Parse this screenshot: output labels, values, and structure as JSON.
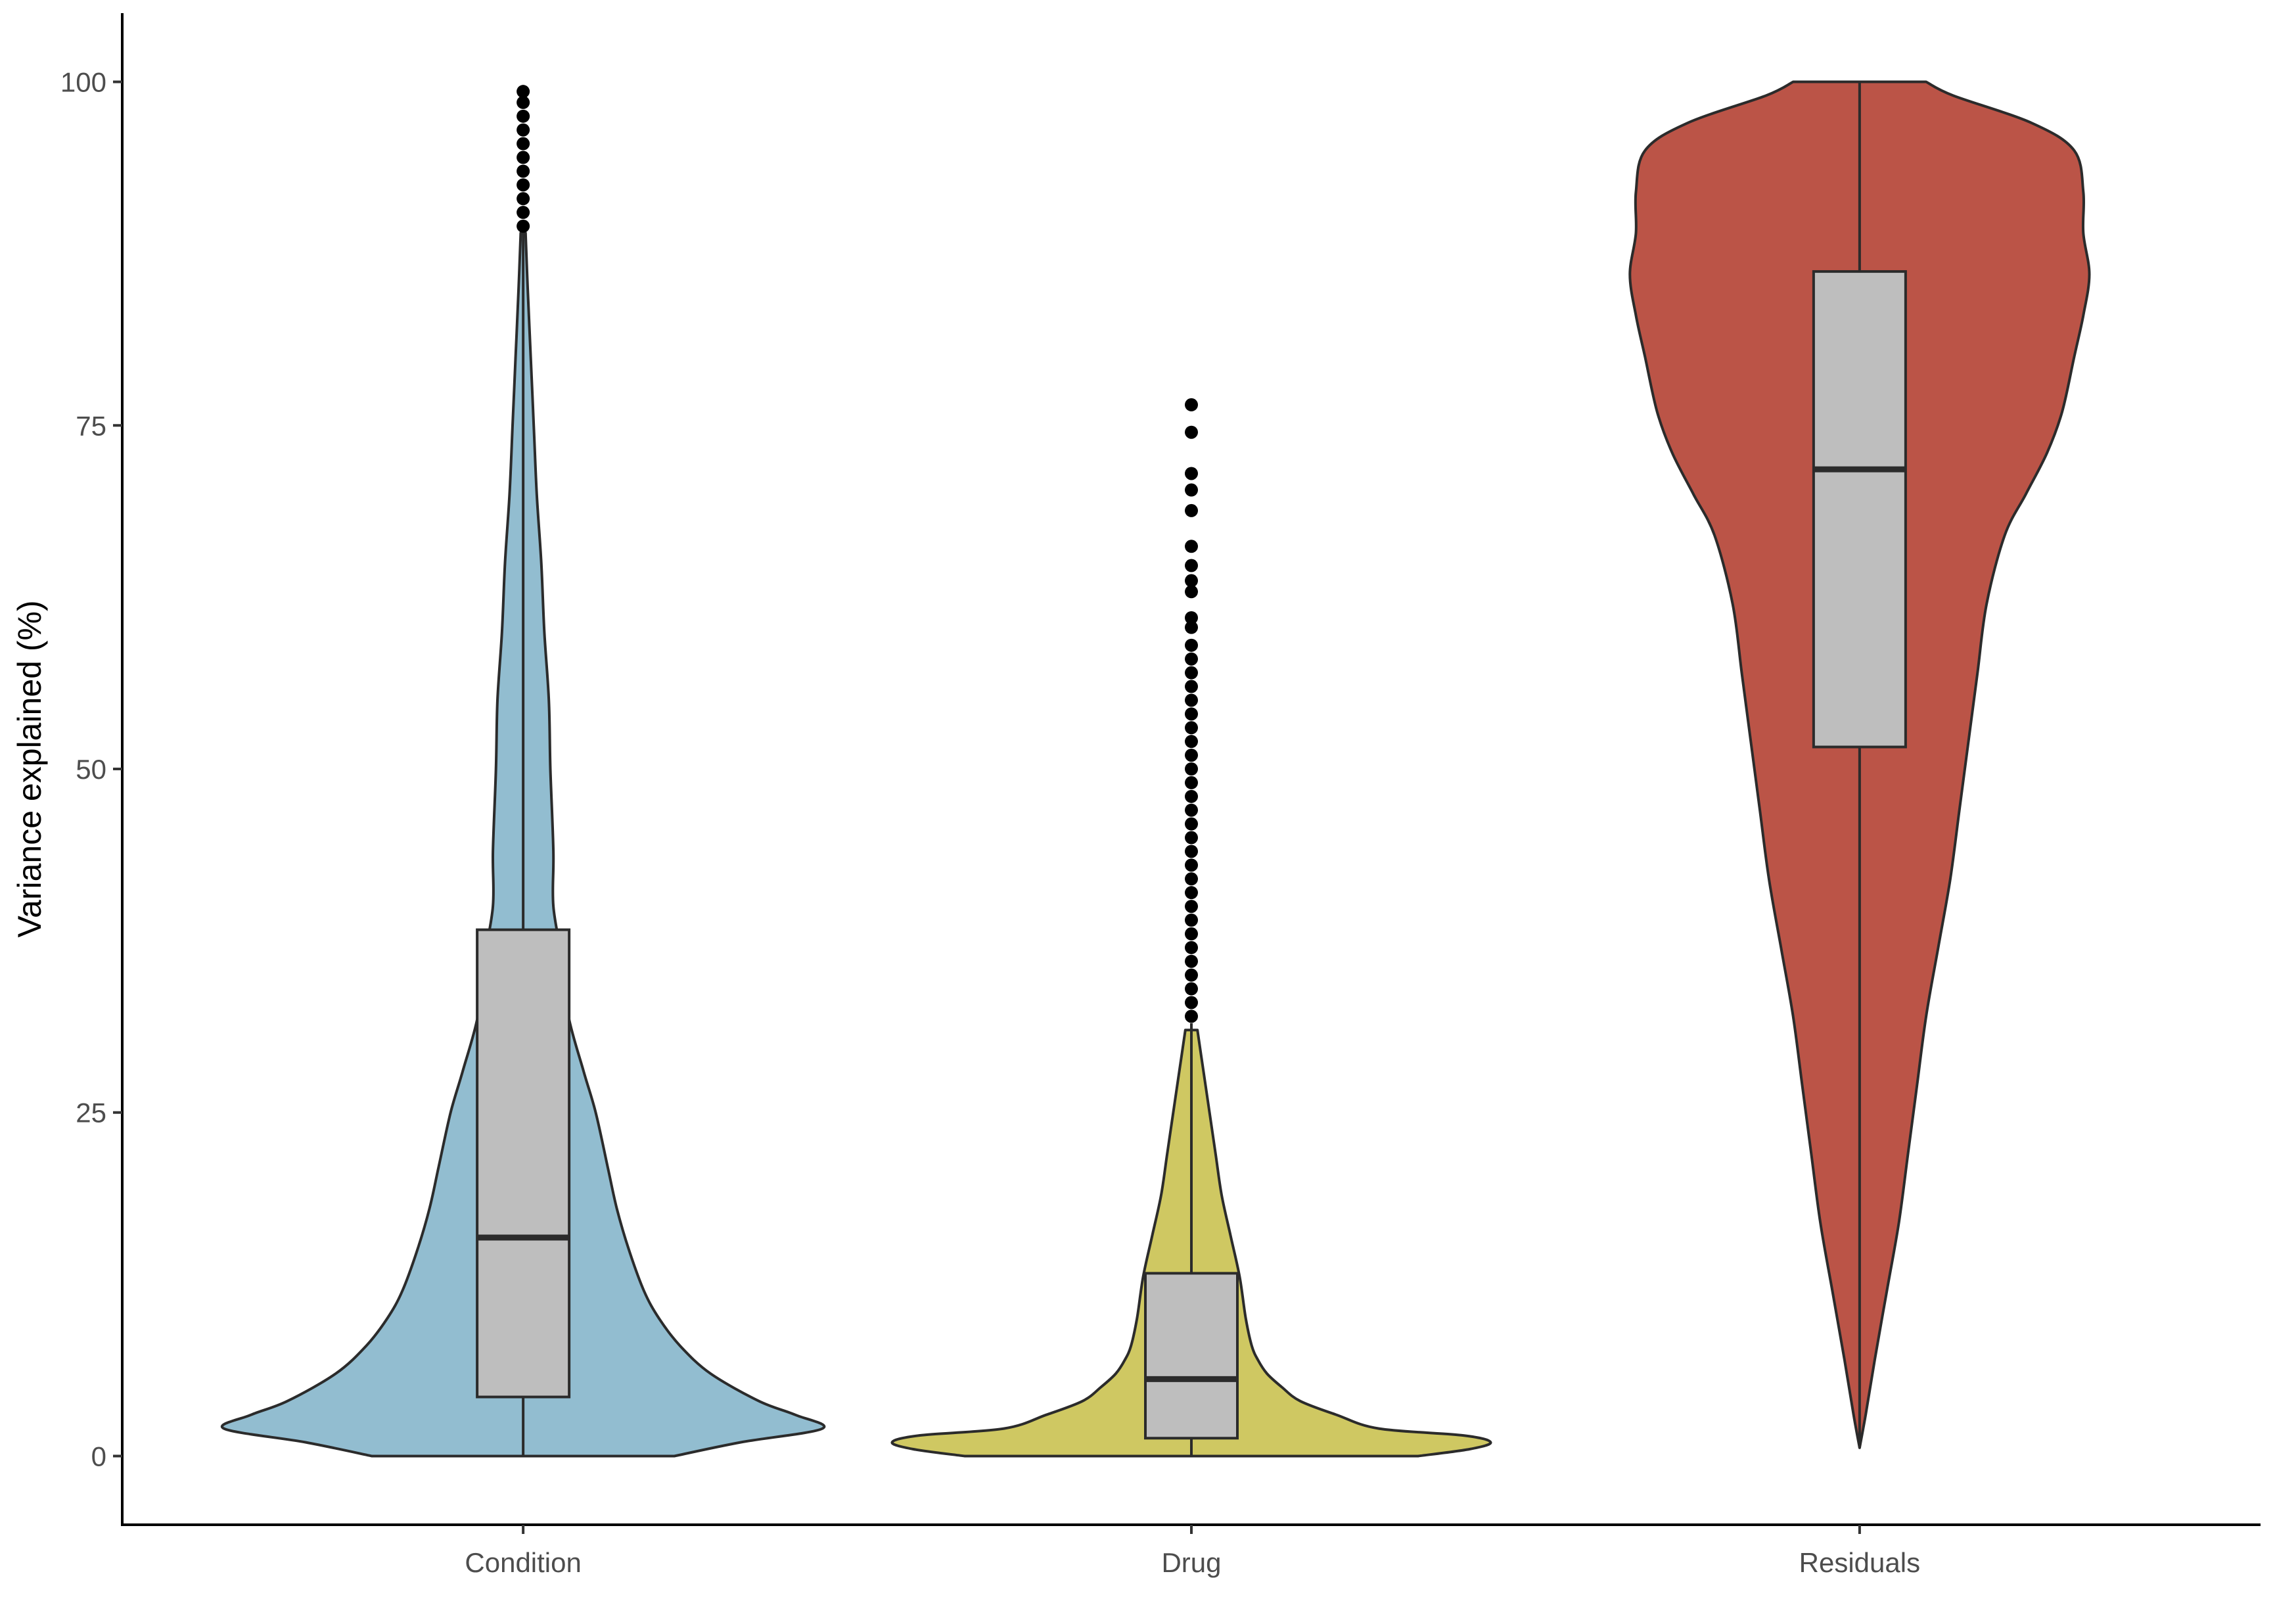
{
  "chart_data": {
    "type": "violin",
    "title": "",
    "xlabel": "",
    "ylabel": "Variance explained (%)",
    "ylim": [
      -5,
      105
    ],
    "yticks": [
      0,
      25,
      50,
      75,
      100
    ],
    "grid": false,
    "legend": "none",
    "categories": [
      "Condition",
      "Drug",
      "Residuals"
    ],
    "series": [
      {
        "category": "Condition",
        "color": "#92bdd0",
        "box": {
          "q1": 4.3,
          "median": 15.9,
          "q3": 38.3,
          "whisker_low": 0,
          "whisker_high": 89
        },
        "outliers": [
          89.5,
          90.5,
          91.5,
          92.5,
          93.5,
          94.5,
          95.5,
          96.5,
          97.5,
          98.5,
          99.3
        ],
        "density": [
          [
            0,
            0.5
          ],
          [
            1,
            0.72
          ],
          [
            2,
            0.99
          ],
          [
            3,
            0.9
          ],
          [
            4,
            0.78
          ],
          [
            6,
            0.62
          ],
          [
            8,
            0.52
          ],
          [
            10,
            0.45
          ],
          [
            12,
            0.4
          ],
          [
            15,
            0.35
          ],
          [
            18,
            0.31
          ],
          [
            21,
            0.28
          ],
          [
            25,
            0.24
          ],
          [
            28,
            0.2
          ],
          [
            32,
            0.15
          ],
          [
            36,
            0.13
          ],
          [
            40,
            0.1
          ],
          [
            44,
            0.1
          ],
          [
            50,
            0.09
          ],
          [
            55,
            0.085
          ],
          [
            60,
            0.07
          ],
          [
            65,
            0.06
          ],
          [
            70,
            0.045
          ],
          [
            75,
            0.035
          ],
          [
            80,
            0.025
          ],
          [
            85,
            0.015
          ],
          [
            89,
            0.008
          ]
        ]
      },
      {
        "category": "Drug",
        "color": "#cfc862",
        "box": {
          "q1": 1.3,
          "median": 5.6,
          "q3": 13.3,
          "whisker_low": 0,
          "whisker_high": 31.5
        },
        "outliers": [
          76.5,
          74.5,
          71.5,
          70.3,
          68.8,
          66.2,
          64.8,
          63.7,
          62.9,
          61,
          60.3,
          59,
          58,
          57,
          56,
          55,
          54,
          53,
          52,
          51,
          50,
          49,
          48,
          47,
          46,
          45,
          44,
          43,
          42,
          41,
          40,
          39,
          38,
          37,
          36,
          35,
          34,
          33,
          32
        ],
        "density": [
          [
            0,
            0.75
          ],
          [
            0.5,
            0.92
          ],
          [
            1,
            0.99
          ],
          [
            1.5,
            0.9
          ],
          [
            2,
            0.62
          ],
          [
            3,
            0.48
          ],
          [
            4,
            0.36
          ],
          [
            5,
            0.3
          ],
          [
            6,
            0.25
          ],
          [
            7,
            0.22
          ],
          [
            8,
            0.2
          ],
          [
            10,
            0.18
          ],
          [
            13,
            0.16
          ],
          [
            16,
            0.13
          ],
          [
            19,
            0.1
          ],
          [
            22,
            0.08
          ],
          [
            25,
            0.06
          ],
          [
            28,
            0.04
          ],
          [
            31,
            0.02
          ]
        ]
      },
      {
        "category": "Residuals",
        "color": "#bb5447",
        "box": {
          "q1": 51.6,
          "median": 71.8,
          "q3": 86.2,
          "whisker_low": 0.6,
          "whisker_high": 100
        },
        "outliers": [],
        "density": [
          [
            0.6,
            0.0
          ],
          [
            3,
            0.02
          ],
          [
            7,
            0.05
          ],
          [
            12,
            0.09
          ],
          [
            17,
            0.13
          ],
          [
            22,
            0.16
          ],
          [
            27,
            0.19
          ],
          [
            32,
            0.22
          ],
          [
            37,
            0.26
          ],
          [
            42,
            0.3
          ],
          [
            47,
            0.33
          ],
          [
            52,
            0.36
          ],
          [
            57,
            0.39
          ],
          [
            62,
            0.42
          ],
          [
            67,
            0.48
          ],
          [
            70,
            0.55
          ],
          [
            73,
            0.62
          ],
          [
            76,
            0.67
          ],
          [
            80,
            0.71
          ],
          [
            83,
            0.74
          ],
          [
            86,
            0.76
          ],
          [
            89,
            0.74
          ],
          [
            92,
            0.74
          ],
          [
            95,
            0.71
          ],
          [
            97,
            0.57
          ],
          [
            99,
            0.31
          ],
          [
            100,
            0.22
          ]
        ]
      }
    ]
  }
}
